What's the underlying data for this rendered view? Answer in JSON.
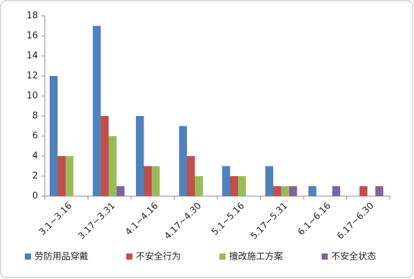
{
  "chart_data": {
    "type": "bar",
    "categories": [
      "3.1~3.16",
      "3.17~3.31",
      "4.1~4.16",
      "4.17~4.30",
      "5.1~5.16",
      "5.17~5.31",
      "6.1~6.16",
      "6.17~6.30"
    ],
    "series": [
      {
        "name": "劳防用品穿戴",
        "color": "#4f81bd",
        "values": [
          12,
          17,
          8,
          7,
          3,
          3,
          1,
          0
        ]
      },
      {
        "name": "不安全行为",
        "color": "#c0504d",
        "values": [
          4,
          8,
          3,
          4,
          2,
          1,
          0,
          1
        ]
      },
      {
        "name": "擅改施工方案",
        "color": "#9bbb59",
        "values": [
          4,
          6,
          3,
          2,
          2,
          1,
          0,
          0
        ]
      },
      {
        "name": "不安全状态",
        "color": "#8064a2",
        "values": [
          0,
          1,
          0,
          0,
          0,
          1,
          1,
          1
        ]
      }
    ],
    "ylim": [
      0,
      18
    ],
    "yticks": [
      0,
      2,
      4,
      6,
      8,
      10,
      12,
      14,
      16,
      18
    ],
    "grid": false,
    "legend": "bottom"
  }
}
